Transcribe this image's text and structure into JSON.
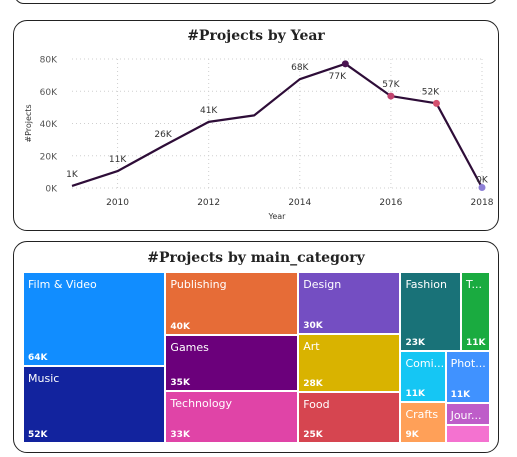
{
  "chart_data": [
    {
      "type": "line",
      "title": "#Projects by Year",
      "xlabel": "Year",
      "ylabel": "#Projects",
      "x": [
        2009,
        2010,
        2011,
        2012,
        2013,
        2014,
        2015,
        2016,
        2017,
        2018
      ],
      "values": [
        1300,
        10500,
        26000,
        41000,
        45000,
        67500,
        77000,
        57000,
        52500,
        300
      ],
      "point_labels": [
        "1K",
        "11K",
        "26K",
        "41K",
        "",
        "68K",
        "77K",
        "57K",
        "52K",
        "0K"
      ],
      "xticks": [
        "2010",
        "2012",
        "2014",
        "2016",
        "2018"
      ],
      "yticks": [
        "0K",
        "20K",
        "40K",
        "60K",
        "80K"
      ],
      "ylim": [
        0,
        80000
      ],
      "grid": true,
      "colors": {
        "line": "#2e0d38",
        "marker_2015": "#4b1452",
        "marker_2016": "#c0436e",
        "marker_2017": "#d4506f",
        "marker_2018": "#8d7fd6"
      }
    },
    {
      "type": "treemap",
      "title": "#Projects by main_category",
      "items": [
        {
          "name": "Film & Video",
          "label": "64K",
          "value": 63600,
          "color": "#118dff"
        },
        {
          "name": "Music",
          "label": "52K",
          "value": 51900,
          "color": "#12239e"
        },
        {
          "name": "Publishing",
          "label": "40K",
          "value": 39900,
          "color": "#e66c37"
        },
        {
          "name": "Games",
          "label": "35K",
          "value": 35200,
          "color": "#6b007b"
        },
        {
          "name": "Technology",
          "label": "33K",
          "value": 32600,
          "color": "#e044a7"
        },
        {
          "name": "Design",
          "label": "30K",
          "value": 30100,
          "color": "#744ec2"
        },
        {
          "name": "Art",
          "label": "28K",
          "value": 28200,
          "color": "#d9b300"
        },
        {
          "name": "Food",
          "label": "25K",
          "value": 24600,
          "color": "#d64550"
        },
        {
          "name": "Fashion",
          "label": "23K",
          "value": 22800,
          "color": "#197278"
        },
        {
          "name": "T...",
          "label": "11K",
          "value": 10900,
          "color": "#1aab40"
        },
        {
          "name": "Comi...",
          "label": "11K",
          "value": 10800,
          "color": "#15c6f4"
        },
        {
          "name": "Phot...",
          "label": "11K",
          "value": 10800,
          "color": "#4092ff"
        },
        {
          "name": "Crafts",
          "label": "9K",
          "value": 8800,
          "color": "#ffa058"
        },
        {
          "name": "Jour...",
          "label": "",
          "value": 4700,
          "color": "#be5dc9"
        },
        {
          "name": "",
          "label": "",
          "value": 3800,
          "color": "#f472d0"
        }
      ]
    }
  ]
}
